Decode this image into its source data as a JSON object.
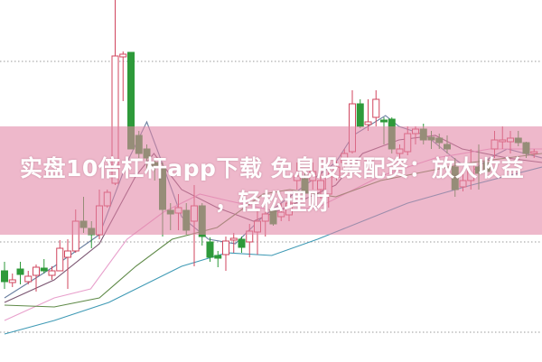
{
  "banner": {
    "line1": "实盘10倍杠杆app下载 免息股票配资：放大收益",
    "line2": "，轻松理财"
  },
  "colors": {
    "up": "#d0455e",
    "down": "#2e9a3a",
    "grid": "#9a9a9a",
    "banner": "#e284a6"
  },
  "chart_data": {
    "type": "candlestick",
    "title": "",
    "xlabel": "",
    "ylabel": "",
    "ylim": [
      0,
      40
    ],
    "grid": true,
    "gridlines": [
      33.2,
      13.2,
      3.2
    ],
    "legend": "none",
    "candles": [
      [
        10,
        8.8,
        11,
        8
      ],
      [
        8.7,
        9,
        9.7,
        8.2
      ],
      [
        10.2,
        9.6,
        11,
        8.5
      ],
      [
        8.8,
        9.4,
        10,
        8.5
      ],
      [
        9.5,
        10.4,
        10.7,
        7.7
      ],
      [
        10.3,
        10,
        11.3,
        9.7
      ],
      [
        9.5,
        10,
        10.5,
        9
      ],
      [
        10,
        12.5,
        13.4,
        10
      ],
      [
        11.5,
        12.2,
        13.5,
        8
      ],
      [
        12.2,
        15.5,
        16.8,
        12
      ],
      [
        15.5,
        14.8,
        18.2,
        14.2
      ],
      [
        14.7,
        14,
        15.5,
        12.5
      ],
      [
        14,
        17.2,
        19,
        13.5
      ],
      [
        17.2,
        18.7,
        19,
        17
      ],
      [
        19.7,
        33.8,
        40,
        19.5
      ],
      [
        33.7,
        34,
        34.3,
        28.8
      ],
      [
        34.2,
        23.5,
        34.2,
        23.5
      ],
      [
        25,
        23,
        25.5,
        22.5
      ],
      [
        23.5,
        22.5,
        24,
        21
      ],
      [
        22,
        21.5,
        22.5,
        20
      ],
      [
        21.5,
        16.8,
        22,
        13.8
      ],
      [
        16.7,
        16.3,
        17.5,
        14.5
      ],
      [
        16.4,
        17,
        18.5,
        14.5
      ],
      [
        16.7,
        14.5,
        17.5,
        14
      ],
      [
        15.5,
        17.2,
        19.5,
        10.5
      ],
      [
        17.2,
        13.8,
        17.5,
        12.8
      ],
      [
        13.2,
        11.5,
        13.7,
        11
      ],
      [
        11.7,
        11.4,
        12.2,
        10.4
      ],
      [
        11.8,
        13.3,
        13.8,
        10
      ],
      [
        13.4,
        13.6,
        14.2,
        12
      ],
      [
        13.5,
        12.6,
        13.8,
        12
      ],
      [
        13.2,
        14.4,
        15.2,
        11.5
      ],
      [
        14.3,
        15.5,
        16.7,
        11.8
      ],
      [
        15.5,
        16.3,
        17.2,
        13.8
      ],
      [
        16.8,
        15.2,
        17.2,
        15
      ],
      [
        16,
        16.5,
        17.5,
        15.5
      ],
      [
        16.2,
        17.5,
        18,
        15.5
      ],
      [
        20,
        20.5,
        22,
        19
      ],
      [
        20.2,
        18.6,
        21,
        18
      ],
      [
        20,
        21,
        22,
        19
      ],
      [
        19,
        20,
        21.2,
        18
      ],
      [
        18.5,
        20.5,
        22,
        17
      ],
      [
        20.4,
        21.5,
        22.2,
        20
      ],
      [
        22,
        23,
        23.5,
        21
      ],
      [
        23.2,
        28.5,
        30,
        23
      ],
      [
        28.5,
        26,
        29,
        25.8
      ],
      [
        26.2,
        26.5,
        29,
        25.5
      ],
      [
        27,
        29,
        30,
        26
      ],
      [
        26.7,
        26.5,
        27,
        24
      ],
      [
        26.8,
        23.5,
        27,
        23
      ],
      [
        23,
        23.5,
        24,
        22
      ],
      [
        23.2,
        25.2,
        26,
        22.8
      ],
      [
        25.2,
        25.7,
        26,
        24
      ],
      [
        25.7,
        24.5,
        26.3,
        24
      ],
      [
        24.8,
        24.5,
        25.5,
        23.5
      ],
      [
        24.7,
        24.2,
        25.2,
        23.5
      ],
      [
        24,
        23.5,
        25,
        23
      ],
      [
        21.5,
        19,
        22.5,
        18.2
      ],
      [
        19.3,
        20,
        21.2,
        18.8
      ],
      [
        20,
        21.8,
        23.5,
        19
      ],
      [
        21.5,
        20.8,
        24,
        19
      ],
      [
        22,
        21,
        22.5,
        20.5
      ],
      [
        23.5,
        24.5,
        25.5,
        22.5
      ],
      [
        24.3,
        24.5,
        26,
        23.5
      ],
      [
        24.3,
        24.7,
        25.5,
        23
      ],
      [
        24.7,
        24.2,
        25.5,
        23.8
      ],
      [
        24.2,
        23,
        24.3,
        22.5
      ],
      [
        23,
        23.2,
        23.5,
        22.5
      ]
    ],
    "candle_fields": [
      "open",
      "close",
      "high",
      "low"
    ],
    "moving_averages": [
      {
        "color": "#6a7fa0",
        "points": [
          [
            0,
            7
          ],
          [
            6.3,
            10.5
          ],
          [
            12,
            14
          ],
          [
            15.5,
            22
          ],
          [
            18,
            26.5
          ],
          [
            19.5,
            23
          ],
          [
            22.4,
            16
          ],
          [
            25.8,
            13.5
          ],
          [
            29.2,
            13
          ],
          [
            32.7,
            16
          ],
          [
            37.3,
            19
          ],
          [
            41.9,
            22
          ],
          [
            44.1,
            25
          ],
          [
            48.2,
            27.2
          ],
          [
            49.9,
            26
          ],
          [
            53.3,
            25
          ],
          [
            56.8,
            22.5
          ],
          [
            59.1,
            21
          ],
          [
            61.4,
            22.5
          ],
          [
            63.6,
            23.5
          ],
          [
            68,
            22.5
          ]
        ]
      },
      {
        "color": "#7a5470",
        "points": [
          [
            0,
            6.5
          ],
          [
            6.3,
            9
          ],
          [
            12,
            13
          ],
          [
            16.6,
            20.5
          ],
          [
            18.9,
            23
          ],
          [
            22.4,
            19
          ],
          [
            26.9,
            17
          ],
          [
            31.5,
            15.5
          ],
          [
            36.1,
            17.2
          ],
          [
            41.9,
            19.5
          ],
          [
            45.3,
            23
          ],
          [
            49.9,
            24.5
          ],
          [
            54.5,
            25
          ],
          [
            57.9,
            23.5
          ],
          [
            63.6,
            22.5
          ],
          [
            68,
            22
          ]
        ]
      },
      {
        "color": "#e8a0cc",
        "points": [
          [
            0,
            4.5
          ],
          [
            6.3,
            7
          ],
          [
            10.9,
            8
          ],
          [
            15.5,
            13.5
          ],
          [
            20.1,
            16.5
          ],
          [
            24.7,
            18.5
          ],
          [
            28.1,
            17.8
          ],
          [
            33.8,
            16.7
          ],
          [
            39.6,
            17
          ],
          [
            47.6,
            20.5
          ],
          [
            54.5,
            22.5
          ],
          [
            61.4,
            23.5
          ],
          [
            68,
            23.5
          ]
        ]
      },
      {
        "color": "#5f8a48",
        "points": [
          [
            0,
            6.2
          ],
          [
            6.3,
            6
          ],
          [
            12,
            7
          ],
          [
            16.6,
            10.5
          ],
          [
            21.2,
            13.5
          ],
          [
            26.9,
            14.8
          ],
          [
            32.7,
            18.5
          ],
          [
            36.1,
            19
          ],
          [
            41.9,
            18.2
          ],
          [
            47.6,
            20
          ],
          [
            53.3,
            21
          ],
          [
            59.1,
            22
          ],
          [
            68,
            23
          ]
        ]
      },
      {
        "color": "#3f9ab5",
        "points": [
          [
            0,
            3
          ],
          [
            6.3,
            4.5
          ],
          [
            13.2,
            6.5
          ],
          [
            22.4,
            10.5
          ],
          [
            28.1,
            12
          ],
          [
            33.8,
            11.7
          ],
          [
            39.6,
            13.5
          ],
          [
            45.3,
            15.5
          ],
          [
            51,
            17.5
          ],
          [
            59.1,
            19.5
          ],
          [
            68,
            21.5
          ]
        ]
      }
    ]
  }
}
